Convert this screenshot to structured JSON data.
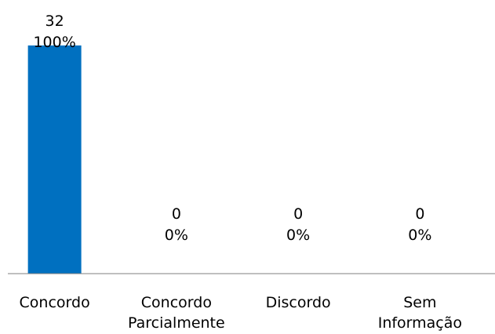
{
  "chart_data": {
    "type": "bar",
    "categories": [
      "Concordo",
      "Concordo Parcialmente",
      "Discordo",
      "Sem Informação"
    ],
    "category_lines": [
      [
        "Concordo"
      ],
      [
        "Concordo",
        "Parcialmente"
      ],
      [
        "Discordo"
      ],
      [
        "Sem",
        "Informação"
      ]
    ],
    "values": [
      32,
      0,
      0,
      0
    ],
    "percent_labels": [
      "100%",
      "0%",
      "0%",
      "0%"
    ],
    "ylim": [
      0,
      32
    ],
    "grid": false,
    "legend": "none",
    "bar_color": "#0070C0",
    "axis_color": "#7f7f7f"
  }
}
